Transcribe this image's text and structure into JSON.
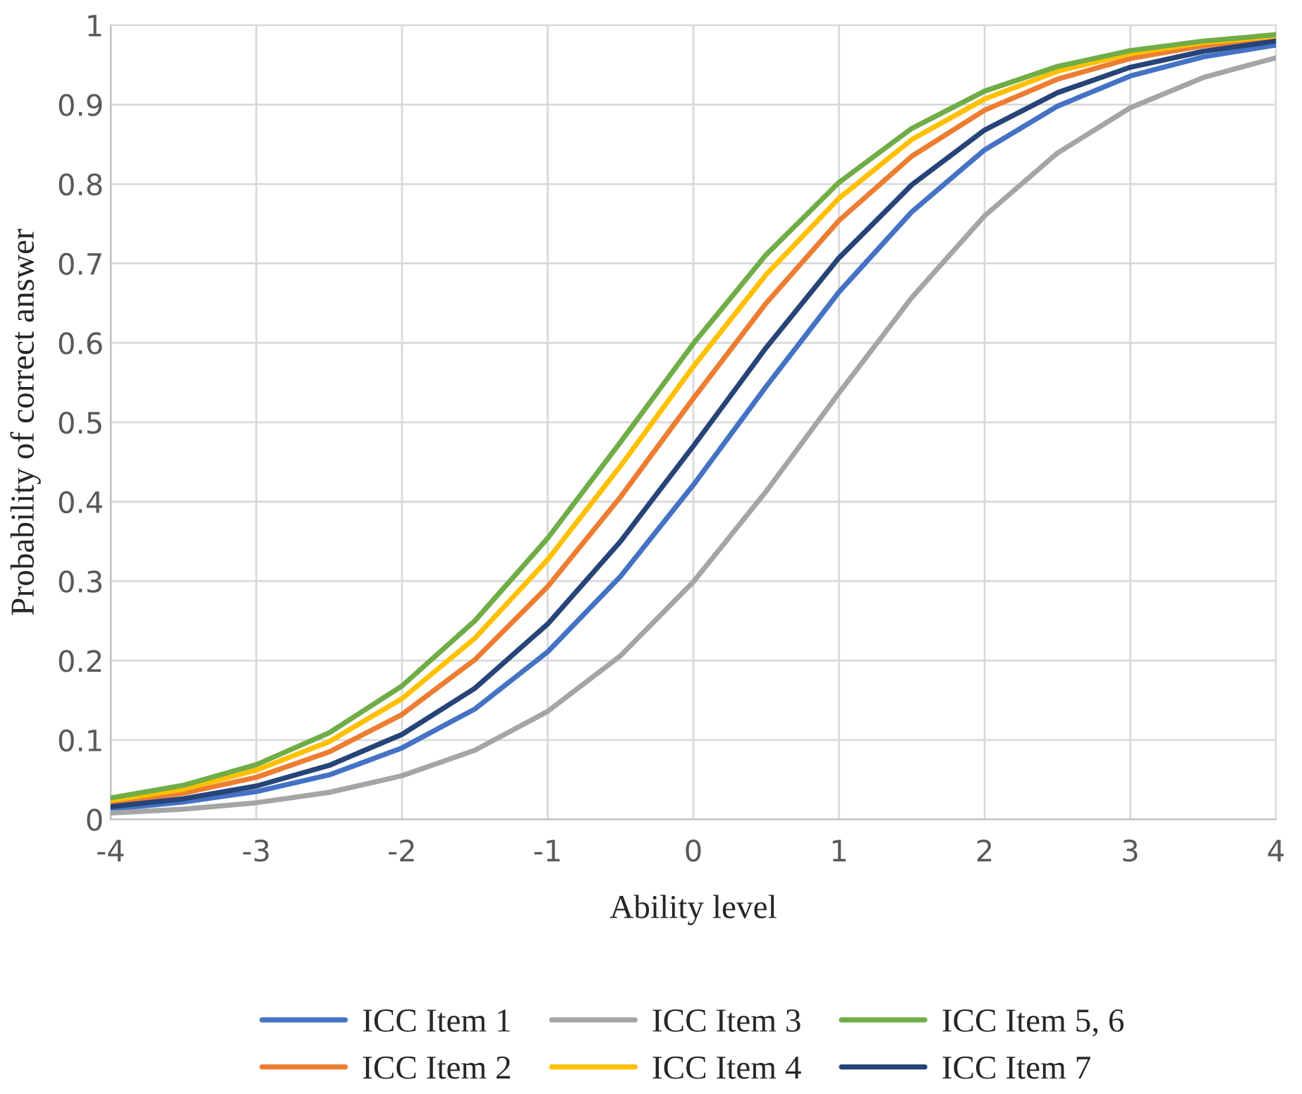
{
  "chart_data": {
    "type": "line",
    "xlabel": "Ability level",
    "ylabel": "Probability of correct answer",
    "x": [
      -4,
      -3.5,
      -3,
      -2.5,
      -2,
      -1.5,
      -1,
      -0.5,
      0,
      0.5,
      1,
      1.5,
      2,
      2.5,
      3,
      3.5,
      4
    ],
    "series": [
      {
        "name": "ICC Item 1",
        "color": "#4472c4",
        "values": [
          0.013,
          0.022,
          0.035,
          0.056,
          0.09,
          0.139,
          0.211,
          0.306,
          0.421,
          0.545,
          0.664,
          0.765,
          0.843,
          0.898,
          0.936,
          0.96,
          0.975
        ]
      },
      {
        "name": "ICC Item 2",
        "color": "#ed7d31",
        "values": [
          0.02,
          0.033,
          0.053,
          0.085,
          0.132,
          0.201,
          0.293,
          0.406,
          0.53,
          0.65,
          0.754,
          0.835,
          0.893,
          0.932,
          0.958,
          0.974,
          0.984
        ]
      },
      {
        "name": "ICC Item 3",
        "color": "#a5a5a5",
        "values": [
          0.008,
          0.013,
          0.021,
          0.034,
          0.055,
          0.087,
          0.136,
          0.206,
          0.299,
          0.413,
          0.537,
          0.657,
          0.76,
          0.839,
          0.896,
          0.934,
          0.959
        ]
      },
      {
        "name": "ICC Item 4",
        "color": "#ffc000",
        "values": [
          0.024,
          0.038,
          0.062,
          0.098,
          0.152,
          0.228,
          0.327,
          0.445,
          0.57,
          0.686,
          0.782,
          0.856,
          0.907,
          0.942,
          0.964,
          0.978,
          0.986
        ]
      },
      {
        "name": "ICC Item 5, 6",
        "color": "#70ad47",
        "values": [
          0.027,
          0.043,
          0.069,
          0.109,
          0.168,
          0.25,
          0.354,
          0.475,
          0.599,
          0.711,
          0.802,
          0.87,
          0.917,
          0.948,
          0.968,
          0.98,
          0.988
        ]
      },
      {
        "name": "ICC Item 7",
        "color": "#264478",
        "values": [
          0.016,
          0.026,
          0.042,
          0.068,
          0.107,
          0.165,
          0.246,
          0.35,
          0.47,
          0.594,
          0.707,
          0.799,
          0.868,
          0.915,
          0.947,
          0.967,
          0.98
        ]
      }
    ],
    "xlim": [
      -4,
      4
    ],
    "ylim": [
      0,
      1
    ],
    "xticks": [
      -4,
      -3,
      -2,
      -1,
      0,
      1,
      2,
      3,
      4
    ],
    "yticks": [
      0,
      0.1,
      0.2,
      0.3,
      0.4,
      0.5,
      0.6,
      0.7,
      0.8,
      0.9,
      1
    ],
    "grid": true,
    "legend": "bottom"
  }
}
